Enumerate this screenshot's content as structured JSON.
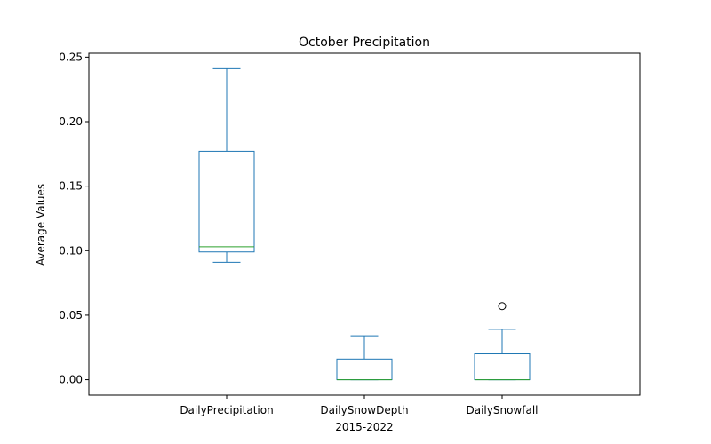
{
  "chart_data": {
    "type": "box",
    "title": "October Precipitation",
    "xlabel": "2015-2022",
    "ylabel": "Average Values",
    "ylim": [
      -0.012,
      0.253
    ],
    "yticks": [
      0.0,
      0.05,
      0.1,
      0.15,
      0.2,
      0.25
    ],
    "ytick_labels": [
      "0.00",
      "0.05",
      "0.10",
      "0.15",
      "0.20",
      "0.25"
    ],
    "grid": false,
    "categories": [
      "DailyPrecipitation",
      "DailySnowDepth",
      "DailySnowfall"
    ],
    "boxes": [
      {
        "whisker_low": 0.091,
        "q1": 0.099,
        "median": 0.103,
        "q3": 0.177,
        "whisker_high": 0.241,
        "outliers": []
      },
      {
        "whisker_low": 0.0,
        "q1": 0.0,
        "median": 0.0,
        "q3": 0.016,
        "whisker_high": 0.034,
        "outliers": []
      },
      {
        "whisker_low": 0.0,
        "q1": 0.0,
        "median": 0.0,
        "q3": 0.02,
        "whisker_high": 0.039,
        "outliers": [
          0.057
        ]
      }
    ],
    "colors": {
      "box": "#1f77b4",
      "median": "#2ca02c",
      "outlier": "#000000",
      "axes": "#000000"
    }
  }
}
